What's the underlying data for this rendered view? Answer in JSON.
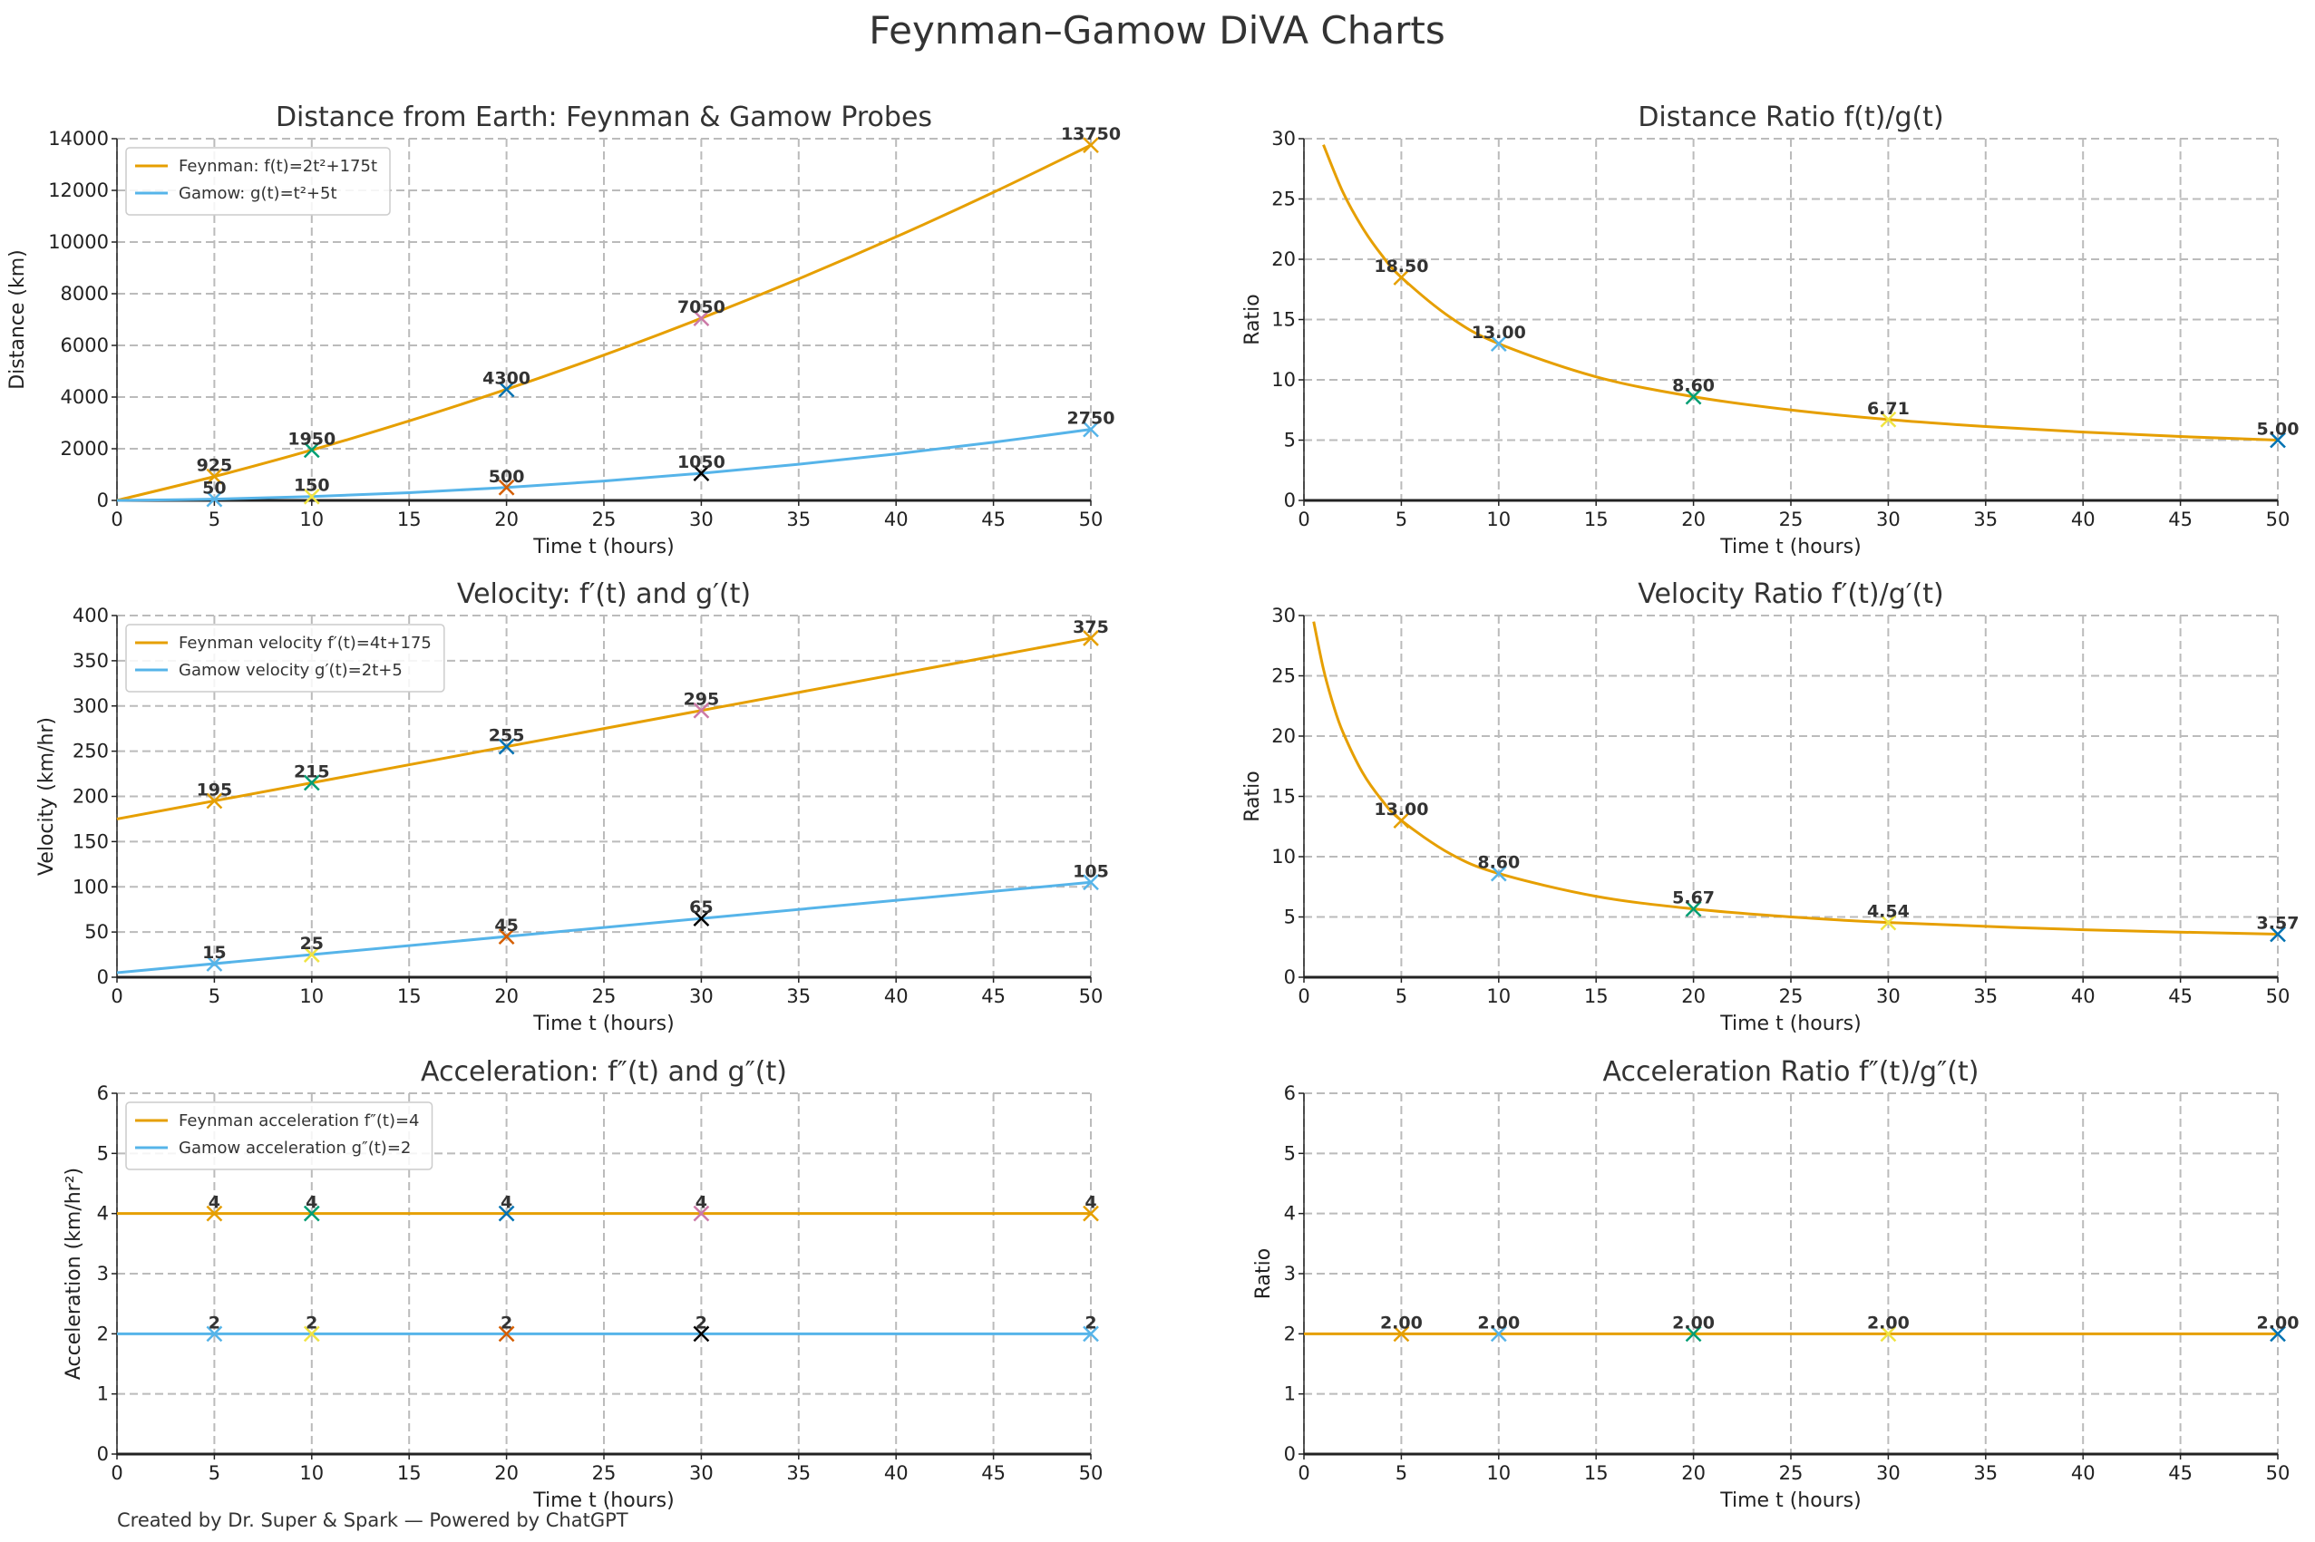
{
  "figure": {
    "title": "Feynman–Gamow DiVA Charts",
    "footer": "Created by Dr. Super & Spark — Powered by ChatGPT"
  },
  "colors": {
    "feynman": "#E69F00",
    "gamow": "#56B4E9",
    "marker_cycle_a": [
      "#E69F00",
      "#009E73",
      "#0072B2",
      "#CC79A7",
      "#E69F00"
    ],
    "marker_cycle_b": [
      "#56B4E9",
      "#F0E442",
      "#D55E00",
      "#000000",
      "#56B4E9"
    ],
    "marker_cycle_ratio": [
      "#E69F00",
      "#56B4E9",
      "#009E73",
      "#F0E442",
      "#0072B2"
    ]
  },
  "chart_data": [
    {
      "type": "line",
      "title": "Distance from Earth: Feynman & Gamow Probes",
      "xlabel": "Time t (hours)",
      "ylabel": "Distance (km)",
      "xlim": [
        0,
        50
      ],
      "ylim": [
        0,
        14000
      ],
      "xticks": [
        "0",
        "5",
        "10",
        "15",
        "20",
        "25",
        "30",
        "35",
        "40",
        "45",
        "50"
      ],
      "yticks": [
        "0",
        "2000",
        "4000",
        "6000",
        "8000",
        "10000",
        "12000",
        "14000"
      ],
      "grid": true,
      "legend": "top-left",
      "marker": "x",
      "series": [
        {
          "name": "Feynman: f(t)=2t²+175t",
          "color": "#E69F00",
          "x": [
            0,
            5,
            10,
            15,
            20,
            25,
            30,
            35,
            40,
            45,
            50
          ],
          "y": [
            0,
            925,
            1950,
            3075,
            4300,
            5625,
            7050,
            8575,
            10200,
            11925,
            13750
          ],
          "points": {
            "x": [
              5,
              10,
              20,
              30,
              50
            ],
            "y": [
              925,
              1950,
              4300,
              7050,
              13750
            ],
            "labels": [
              "925",
              "1950",
              "4300",
              "7050",
              "13750"
            ],
            "colors": "marker_cycle_a"
          }
        },
        {
          "name": "Gamow: g(t)=t²+5t",
          "color": "#56B4E9",
          "x": [
            0,
            5,
            10,
            15,
            20,
            25,
            30,
            35,
            40,
            45,
            50
          ],
          "y": [
            0,
            50,
            150,
            300,
            500,
            750,
            1050,
            1400,
            1800,
            2250,
            2750
          ],
          "points": {
            "x": [
              5,
              10,
              20,
              30,
              50
            ],
            "y": [
              50,
              150,
              500,
              1050,
              2750
            ],
            "labels": [
              "50",
              "150",
              "500",
              "1050",
              "2750"
            ],
            "colors": "marker_cycle_b"
          }
        }
      ]
    },
    {
      "type": "line",
      "title": "Distance Ratio f(t)/g(t)",
      "xlabel": "Time t (hours)",
      "ylabel": "Ratio",
      "xlim": [
        0,
        50
      ],
      "ylim": [
        0,
        30
      ],
      "xticks": [
        "0",
        "5",
        "10",
        "15",
        "20",
        "25",
        "30",
        "35",
        "40",
        "45",
        "50"
      ],
      "yticks": [
        "0",
        "5",
        "10",
        "15",
        "20",
        "25",
        "30"
      ],
      "grid": true,
      "legend": "none",
      "marker": "x",
      "series": [
        {
          "color": "#E69F00",
          "x": [
            1,
            2,
            3,
            4,
            5,
            7.5,
            10,
            15,
            20,
            25,
            30,
            35,
            40,
            45,
            50
          ],
          "y": [
            29.5,
            25.57,
            22.63,
            20.33,
            18.5,
            15.2,
            13,
            10.25,
            8.6,
            7.5,
            6.71,
            6.125,
            5.667,
            5.3,
            5
          ],
          "points": {
            "x": [
              5,
              10,
              20,
              30,
              50
            ],
            "y": [
              18.5,
              13,
              8.6,
              6.71,
              5
            ],
            "labels": [
              "18.50",
              "13.00",
              "8.60",
              "6.71",
              "5.00"
            ],
            "colors": "marker_cycle_ratio"
          }
        }
      ]
    },
    {
      "type": "line",
      "title": "Velocity: f′(t) and g′(t)",
      "xlabel": "Time t (hours)",
      "ylabel": "Velocity (km/hr)",
      "xlim": [
        0,
        50
      ],
      "ylim": [
        0,
        400
      ],
      "xticks": [
        "0",
        "5",
        "10",
        "15",
        "20",
        "25",
        "30",
        "35",
        "40",
        "45",
        "50"
      ],
      "yticks": [
        "0",
        "50",
        "100",
        "150",
        "200",
        "250",
        "300",
        "350",
        "400"
      ],
      "grid": true,
      "legend": "top-left",
      "marker": "x",
      "series": [
        {
          "name": "Feynman velocity f′(t)=4t+175",
          "color": "#E69F00",
          "x": [
            0,
            50
          ],
          "y": [
            175,
            375
          ],
          "points": {
            "x": [
              5,
              10,
              20,
              30,
              50
            ],
            "y": [
              195,
              215,
              255,
              295,
              375
            ],
            "labels": [
              "195",
              "215",
              "255",
              "295",
              "375"
            ],
            "colors": "marker_cycle_a"
          }
        },
        {
          "name": "Gamow velocity g′(t)=2t+5",
          "color": "#56B4E9",
          "x": [
            0,
            50
          ],
          "y": [
            5,
            105
          ],
          "points": {
            "x": [
              5,
              10,
              20,
              30,
              50
            ],
            "y": [
              15,
              25,
              45,
              65,
              105
            ],
            "labels": [
              "15",
              "25",
              "45",
              "65",
              "105"
            ],
            "colors": "marker_cycle_b"
          }
        }
      ]
    },
    {
      "type": "line",
      "title": "Velocity Ratio f′(t)/g′(t)",
      "xlabel": "Time t (hours)",
      "ylabel": "Ratio",
      "xlim": [
        0,
        50
      ],
      "ylim": [
        0,
        30
      ],
      "xticks": [
        "0",
        "5",
        "10",
        "15",
        "20",
        "25",
        "30",
        "35",
        "40",
        "45",
        "50"
      ],
      "yticks": [
        "0",
        "5",
        "10",
        "15",
        "20",
        "25",
        "30"
      ],
      "grid": true,
      "legend": "none",
      "marker": "x",
      "series": [
        {
          "color": "#E69F00",
          "x": [
            0.5,
            1,
            1.5,
            2,
            3,
            4,
            5,
            7.5,
            10,
            15,
            20,
            25,
            30,
            40,
            50
          ],
          "y": [
            29.5,
            25.57,
            22.63,
            20.33,
            17,
            14.69,
            13,
            10.25,
            8.6,
            6.71,
            5.67,
            5,
            4.54,
            3.94,
            3.57
          ],
          "points": {
            "x": [
              5,
              10,
              20,
              30,
              50
            ],
            "y": [
              13,
              8.6,
              5.67,
              4.54,
              3.57
            ],
            "labels": [
              "13.00",
              "8.60",
              "5.67",
              "4.54",
              "3.57"
            ],
            "colors": "marker_cycle_ratio"
          }
        }
      ]
    },
    {
      "type": "line",
      "title": "Acceleration: f″(t) and g″(t)",
      "xlabel": "Time t (hours)",
      "ylabel": "Acceleration (km/hr²)",
      "xlim": [
        0,
        50
      ],
      "ylim": [
        0,
        6
      ],
      "xticks": [
        "0",
        "5",
        "10",
        "15",
        "20",
        "25",
        "30",
        "35",
        "40",
        "45",
        "50"
      ],
      "yticks": [
        "0",
        "1",
        "2",
        "3",
        "4",
        "5",
        "6"
      ],
      "grid": true,
      "legend": "top-left",
      "marker": "x",
      "series": [
        {
          "name": "Feynman acceleration f″(t)=4",
          "color": "#E69F00",
          "x": [
            0,
            50
          ],
          "y": [
            4,
            4
          ],
          "points": {
            "x": [
              5,
              10,
              20,
              30,
              50
            ],
            "y": [
              4,
              4,
              4,
              4,
              4
            ],
            "labels": [
              "4",
              "4",
              "4",
              "4",
              "4"
            ],
            "colors": "marker_cycle_a"
          }
        },
        {
          "name": "Gamow acceleration g″(t)=2",
          "color": "#56B4E9",
          "x": [
            0,
            50
          ],
          "y": [
            2,
            2
          ],
          "points": {
            "x": [
              5,
              10,
              20,
              30,
              50
            ],
            "y": [
              2,
              2,
              2,
              2,
              2
            ],
            "labels": [
              "2",
              "2",
              "2",
              "2",
              "2"
            ],
            "colors": "marker_cycle_b"
          }
        }
      ]
    },
    {
      "type": "line",
      "title": "Acceleration Ratio f″(t)/g″(t)",
      "xlabel": "Time t (hours)",
      "ylabel": "Ratio",
      "xlim": [
        0,
        50
      ],
      "ylim": [
        0,
        6
      ],
      "xticks": [
        "0",
        "5",
        "10",
        "15",
        "20",
        "25",
        "30",
        "35",
        "40",
        "45",
        "50"
      ],
      "yticks": [
        "0",
        "1",
        "2",
        "3",
        "4",
        "5",
        "6"
      ],
      "grid": true,
      "legend": "none",
      "marker": "x",
      "series": [
        {
          "color": "#E69F00",
          "x": [
            0,
            50
          ],
          "y": [
            2,
            2
          ],
          "points": {
            "x": [
              5,
              10,
              20,
              30,
              50
            ],
            "y": [
              2,
              2,
              2,
              2,
              2
            ],
            "labels": [
              "2.00",
              "2.00",
              "2.00",
              "2.00",
              "2.00"
            ],
            "colors": "marker_cycle_ratio"
          }
        }
      ]
    }
  ]
}
